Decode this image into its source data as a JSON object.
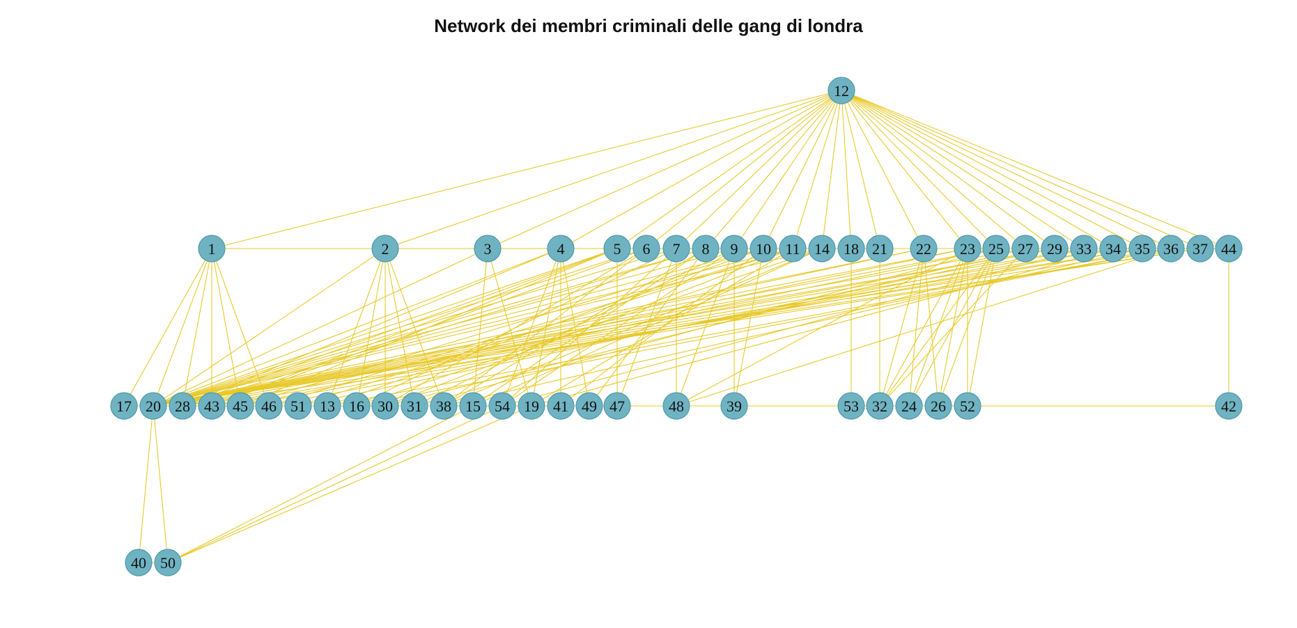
{
  "title": "Network dei membri criminali delle gang di londra",
  "colors": {
    "edge": "#e8c92a",
    "node_fill": "#6fb3c2",
    "node_stroke": "#4f9aab",
    "label": "#111111"
  },
  "nodes": [
    "12",
    "1",
    "2",
    "3",
    "4",
    "5",
    "6",
    "7",
    "8",
    "9",
    "10",
    "11",
    "14",
    "18",
    "21",
    "22",
    "23",
    "25",
    "27",
    "29",
    "33",
    "34",
    "35",
    "36",
    "37",
    "44",
    "17",
    "20",
    "28",
    "43",
    "45",
    "46",
    "51",
    "13",
    "16",
    "30",
    "31",
    "38",
    "15",
    "54",
    "19",
    "41",
    "49",
    "47",
    "48",
    "39",
    "53",
    "32",
    "24",
    "26",
    "52",
    "42",
    "40",
    "50"
  ],
  "edges": [
    [
      "12",
      "1"
    ],
    [
      "12",
      "2"
    ],
    [
      "12",
      "3"
    ],
    [
      "12",
      "4"
    ],
    [
      "12",
      "5"
    ],
    [
      "12",
      "6"
    ],
    [
      "12",
      "7"
    ],
    [
      "12",
      "8"
    ],
    [
      "12",
      "9"
    ],
    [
      "12",
      "10"
    ],
    [
      "12",
      "11"
    ],
    [
      "12",
      "14"
    ],
    [
      "12",
      "18"
    ],
    [
      "12",
      "21"
    ],
    [
      "12",
      "22"
    ],
    [
      "12",
      "23"
    ],
    [
      "12",
      "25"
    ],
    [
      "12",
      "27"
    ],
    [
      "12",
      "29"
    ],
    [
      "12",
      "33"
    ],
    [
      "12",
      "34"
    ],
    [
      "12",
      "35"
    ],
    [
      "12",
      "36"
    ],
    [
      "12",
      "37"
    ],
    [
      "12",
      "44"
    ],
    [
      "1",
      "2"
    ],
    [
      "2",
      "3"
    ],
    [
      "3",
      "4"
    ],
    [
      "4",
      "5"
    ],
    [
      "5",
      "6"
    ],
    [
      "6",
      "7"
    ],
    [
      "7",
      "8"
    ],
    [
      "8",
      "9"
    ],
    [
      "9",
      "10"
    ],
    [
      "10",
      "11"
    ],
    [
      "11",
      "14"
    ],
    [
      "14",
      "18"
    ],
    [
      "18",
      "21"
    ],
    [
      "21",
      "22"
    ],
    [
      "22",
      "23"
    ],
    [
      "23",
      "25"
    ],
    [
      "25",
      "27"
    ],
    [
      "27",
      "29"
    ],
    [
      "29",
      "33"
    ],
    [
      "33",
      "34"
    ],
    [
      "34",
      "35"
    ],
    [
      "35",
      "36"
    ],
    [
      "36",
      "37"
    ],
    [
      "37",
      "44"
    ],
    [
      "1",
      "17"
    ],
    [
      "1",
      "20"
    ],
    [
      "1",
      "28"
    ],
    [
      "1",
      "43"
    ],
    [
      "1",
      "45"
    ],
    [
      "1",
      "46"
    ],
    [
      "2",
      "20"
    ],
    [
      "2",
      "13"
    ],
    [
      "2",
      "16"
    ],
    [
      "2",
      "30"
    ],
    [
      "2",
      "31"
    ],
    [
      "2",
      "38"
    ],
    [
      "3",
      "15"
    ],
    [
      "3",
      "19"
    ],
    [
      "3",
      "20"
    ],
    [
      "4",
      "20"
    ],
    [
      "4",
      "41"
    ],
    [
      "4",
      "49"
    ],
    [
      "4",
      "19"
    ],
    [
      "4",
      "28"
    ],
    [
      "4",
      "54"
    ],
    [
      "5",
      "47"
    ],
    [
      "5",
      "20"
    ],
    [
      "5",
      "28"
    ],
    [
      "5",
      "43"
    ],
    [
      "5",
      "45"
    ],
    [
      "6",
      "20"
    ],
    [
      "6",
      "30"
    ],
    [
      "6",
      "43"
    ],
    [
      "6",
      "38"
    ],
    [
      "7",
      "48"
    ],
    [
      "7",
      "20"
    ],
    [
      "7",
      "54"
    ],
    [
      "7",
      "16"
    ],
    [
      "7",
      "47"
    ],
    [
      "8",
      "20"
    ],
    [
      "8",
      "28"
    ],
    [
      "8",
      "38"
    ],
    [
      "8",
      "15"
    ],
    [
      "8",
      "49"
    ],
    [
      "9",
      "39"
    ],
    [
      "9",
      "48"
    ],
    [
      "9",
      "20"
    ],
    [
      "9",
      "31"
    ],
    [
      "9",
      "54"
    ],
    [
      "10",
      "20"
    ],
    [
      "10",
      "39"
    ],
    [
      "10",
      "13"
    ],
    [
      "10",
      "45"
    ],
    [
      "10",
      "41"
    ],
    [
      "11",
      "20"
    ],
    [
      "11",
      "46"
    ],
    [
      "11",
      "19"
    ],
    [
      "11",
      "51"
    ],
    [
      "11",
      "30"
    ],
    [
      "14",
      "20"
    ],
    [
      "14",
      "16"
    ],
    [
      "14",
      "38"
    ],
    [
      "14",
      "15"
    ],
    [
      "18",
      "53"
    ],
    [
      "21",
      "32"
    ],
    [
      "22",
      "20"
    ],
    [
      "22",
      "24"
    ],
    [
      "22",
      "26"
    ],
    [
      "22",
      "32"
    ],
    [
      "22",
      "28"
    ],
    [
      "23",
      "20"
    ],
    [
      "23",
      "32"
    ],
    [
      "23",
      "24"
    ],
    [
      "23",
      "26"
    ],
    [
      "23",
      "52"
    ],
    [
      "23",
      "43"
    ],
    [
      "23",
      "48"
    ],
    [
      "25",
      "20"
    ],
    [
      "25",
      "32"
    ],
    [
      "25",
      "24"
    ],
    [
      "25",
      "26"
    ],
    [
      "25",
      "52"
    ],
    [
      "25",
      "45"
    ],
    [
      "25",
      "31"
    ],
    [
      "27",
      "20"
    ],
    [
      "27",
      "30"
    ],
    [
      "27",
      "32"
    ],
    [
      "29",
      "20"
    ],
    [
      "29",
      "28"
    ],
    [
      "29",
      "51"
    ],
    [
      "33",
      "20"
    ],
    [
      "33",
      "46"
    ],
    [
      "33",
      "54"
    ],
    [
      "34",
      "20"
    ],
    [
      "34",
      "45"
    ],
    [
      "34",
      "19"
    ],
    [
      "35",
      "20"
    ],
    [
      "35",
      "38"
    ],
    [
      "35",
      "43"
    ],
    [
      "36",
      "48"
    ],
    [
      "36",
      "20"
    ],
    [
      "36",
      "13"
    ],
    [
      "36",
      "16"
    ],
    [
      "37",
      "20"
    ],
    [
      "37",
      "28"
    ],
    [
      "44",
      "42"
    ],
    [
      "17",
      "20"
    ],
    [
      "20",
      "28"
    ],
    [
      "28",
      "43"
    ],
    [
      "43",
      "45"
    ],
    [
      "45",
      "46"
    ],
    [
      "46",
      "51"
    ],
    [
      "51",
      "13"
    ],
    [
      "13",
      "16"
    ],
    [
      "16",
      "30"
    ],
    [
      "30",
      "31"
    ],
    [
      "31",
      "38"
    ],
    [
      "38",
      "15"
    ],
    [
      "15",
      "54"
    ],
    [
      "54",
      "19"
    ],
    [
      "19",
      "41"
    ],
    [
      "41",
      "49"
    ],
    [
      "49",
      "47"
    ],
    [
      "47",
      "48"
    ],
    [
      "48",
      "39"
    ],
    [
      "39",
      "53"
    ],
    [
      "53",
      "32"
    ],
    [
      "32",
      "24"
    ],
    [
      "24",
      "26"
    ],
    [
      "26",
      "52"
    ],
    [
      "52",
      "42"
    ],
    [
      "20",
      "40"
    ],
    [
      "20",
      "50"
    ],
    [
      "40",
      "50"
    ],
    [
      "50",
      "54"
    ],
    [
      "50",
      "19"
    ],
    [
      "50",
      "15"
    ]
  ]
}
